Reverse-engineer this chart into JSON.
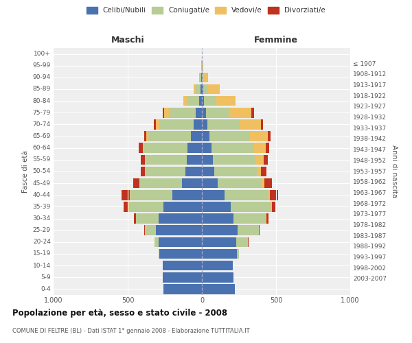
{
  "age_groups": [
    "0-4",
    "5-9",
    "10-14",
    "15-19",
    "20-24",
    "25-29",
    "30-34",
    "35-39",
    "40-44",
    "45-49",
    "50-54",
    "55-59",
    "60-64",
    "65-69",
    "70-74",
    "75-79",
    "80-84",
    "85-89",
    "90-94",
    "95-99",
    "100+"
  ],
  "birth_years": [
    "2003-2007",
    "1998-2002",
    "1993-1997",
    "1988-1992",
    "1983-1987",
    "1978-1982",
    "1973-1977",
    "1968-1972",
    "1963-1967",
    "1958-1962",
    "1953-1957",
    "1948-1952",
    "1943-1947",
    "1938-1942",
    "1933-1937",
    "1928-1932",
    "1923-1927",
    "1918-1922",
    "1913-1917",
    "1908-1912",
    "≤ 1907"
  ],
  "maschi": {
    "celibi": [
      260,
      265,
      265,
      285,
      290,
      310,
      290,
      260,
      200,
      135,
      110,
      100,
      95,
      75,
      55,
      40,
      20,
      10,
      5,
      2,
      2
    ],
    "coniugati": [
      0,
      0,
      0,
      5,
      30,
      75,
      155,
      230,
      280,
      280,
      270,
      280,
      295,
      285,
      230,
      180,
      80,
      30,
      10,
      2,
      0
    ],
    "vedovi": [
      0,
      0,
      0,
      0,
      0,
      0,
      0,
      5,
      5,
      5,
      5,
      5,
      10,
      15,
      25,
      35,
      25,
      15,
      5,
      0,
      0
    ],
    "divorziati": [
      0,
      0,
      0,
      0,
      0,
      5,
      15,
      35,
      55,
      45,
      25,
      25,
      25,
      15,
      15,
      10,
      0,
      0,
      0,
      0,
      0
    ]
  },
  "femmine": {
    "nubili": [
      220,
      215,
      210,
      235,
      230,
      240,
      215,
      195,
      155,
      105,
      85,
      75,
      65,
      50,
      35,
      30,
      15,
      10,
      5,
      2,
      2
    ],
    "coniugate": [
      0,
      0,
      0,
      15,
      80,
      145,
      215,
      270,
      295,
      300,
      285,
      285,
      285,
      275,
      220,
      155,
      80,
      30,
      5,
      2,
      0
    ],
    "vedove": [
      0,
      0,
      0,
      0,
      0,
      0,
      5,
      5,
      10,
      15,
      30,
      55,
      80,
      120,
      145,
      150,
      130,
      80,
      30,
      5,
      0
    ],
    "divorziate": [
      0,
      0,
      0,
      0,
      5,
      5,
      15,
      25,
      55,
      50,
      35,
      30,
      25,
      20,
      10,
      15,
      0,
      0,
      0,
      0,
      0
    ]
  },
  "colors": {
    "celibi_nubili": "#4A72B0",
    "coniugati": "#B8CC96",
    "vedovi": "#F0C060",
    "divorziati": "#C0321E"
  },
  "xlim": 1000,
  "title": "Popolazione per età, sesso e stato civile - 2008",
  "subtitle": "COMUNE DI FELTRE (BL) - Dati ISTAT 1° gennaio 2008 - Elaborazione TUTTITALIA.IT",
  "xlabel_left": "Maschi",
  "xlabel_right": "Femmine",
  "ylabel_left": "Fasce di età",
  "ylabel_right": "Anni di nascita",
  "legend_labels": [
    "Celibi/Nubili",
    "Coniugati/e",
    "Vedovi/e",
    "Divorziati/e"
  ],
  "bg_color": "#ffffff",
  "plot_bg_color": "#efefef",
  "grid_color": "#ffffff",
  "bar_height": 0.85
}
